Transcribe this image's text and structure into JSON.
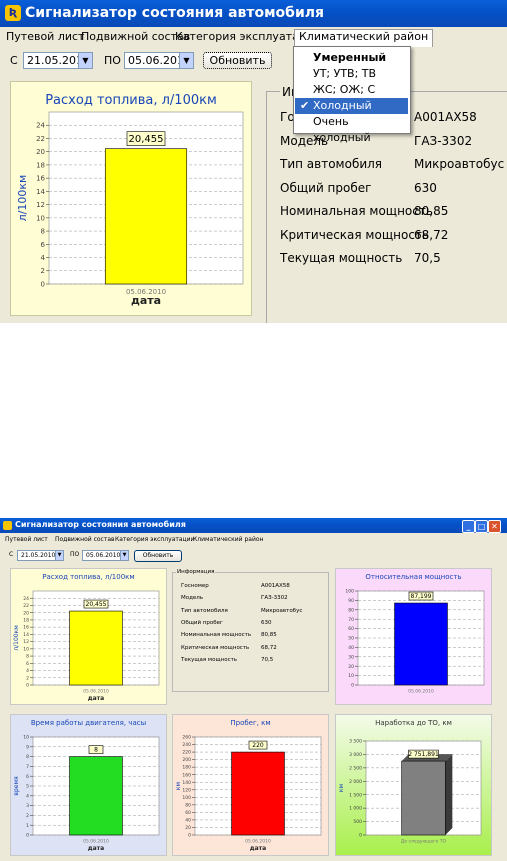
{
  "window_title": "Сигнализатор состояния автомобиля",
  "menu": [
    "Путевой лист",
    "Подвижной состав",
    "Категория эксплуатации",
    "Климатический район"
  ],
  "toolbar": {
    "from_label": "С",
    "from_date": "21.05.2010",
    "to_label": "ПО",
    "to_date": "05.06.2010",
    "refresh_label": "Обновить"
  },
  "climate_menu": {
    "items": [
      {
        "label": "Умеренный",
        "bold": true,
        "checked": false,
        "selected": false
      },
      {
        "label": "УТ; УТВ; ТВ",
        "bold": false,
        "checked": false,
        "selected": false
      },
      {
        "label": "ЖС; ОЖ; С",
        "bold": false,
        "checked": false,
        "selected": false
      },
      {
        "label": "Холодный",
        "bold": false,
        "checked": true,
        "selected": true
      },
      {
        "label": "Очень холодный",
        "bold": false,
        "checked": false,
        "selected": false
      }
    ]
  },
  "info": {
    "legend_top": "Инф",
    "legend": "Информация",
    "rows": [
      {
        "label": "Госномер",
        "label_top": "Гос",
        "value": "А001АХ58"
      },
      {
        "label": "Модель",
        "label_top": "Модель",
        "value": "ГАЗ-3302"
      },
      {
        "label": "Тип автомобиля",
        "label_top": "Тип автомобиля",
        "value": "Микроавтобус"
      },
      {
        "label": "Общий пробег",
        "label_top": "Общий пробег",
        "value": "630"
      },
      {
        "label": "Номинальная мощность",
        "label_top": "Номинальная мощность",
        "value": "80,85"
      },
      {
        "label": "Критическая мощность",
        "label_top": "Критическая мощность",
        "value": "68,72"
      },
      {
        "label": "Текущая мощность",
        "label_top": "Текущая мощность",
        "value": "70,5"
      }
    ]
  },
  "colors": {
    "fuel": "#ffff00",
    "power": "#0000ff",
    "engine": "#22dd22",
    "mileage": "#ff0000",
    "service": "#808080",
    "accent": "#0a5fd8"
  },
  "chart_data": [
    {
      "id": "fuel",
      "type": "bar",
      "title": "Расход топлива, л/100км",
      "xlabel": "дата",
      "ylabel": "л/100км",
      "categories": [
        "05.06.2010"
      ],
      "values": [
        20.455
      ],
      "value_label": "20,455",
      "ylim": [
        0,
        26
      ],
      "yticks": [
        0,
        2,
        4,
        6,
        8,
        10,
        12,
        14,
        16,
        18,
        20,
        22,
        24
      ],
      "grid": true
    },
    {
      "id": "power",
      "type": "bar",
      "title": "Относительная мощность",
      "xlabel": "",
      "ylabel": "",
      "categories": [
        "05.06.2010"
      ],
      "values": [
        87.199
      ],
      "value_label": "87,199",
      "ylim": [
        0,
        100
      ],
      "yticks": [
        0,
        10,
        20,
        30,
        40,
        50,
        60,
        70,
        80,
        90,
        100
      ],
      "grid": true
    },
    {
      "id": "engine",
      "type": "bar",
      "title": "Время работы двигателя, часы",
      "xlabel": "дата",
      "ylabel": "время",
      "categories": [
        "05.06.2010"
      ],
      "values": [
        8
      ],
      "value_label": "8",
      "ylim": [
        0,
        10
      ],
      "yticks": [
        0,
        1,
        2,
        3,
        4,
        5,
        6,
        7,
        8,
        9,
        10
      ],
      "grid": true
    },
    {
      "id": "mileage",
      "type": "bar",
      "title": "Пробег, км",
      "xlabel": "дата",
      "ylabel": "км",
      "categories": [
        "05.06.2010"
      ],
      "values": [
        220
      ],
      "value_label": "220",
      "ylim": [
        0,
        260
      ],
      "yticks": [
        0,
        20,
        40,
        60,
        80,
        100,
        120,
        140,
        160,
        180,
        200,
        220,
        240,
        260
      ],
      "grid": true
    },
    {
      "id": "service",
      "type": "bar",
      "title": "Наработка до ТО, км",
      "xlabel": "",
      "ylabel": "км",
      "categories": [
        "До следующего ТО"
      ],
      "values": [
        2751.891
      ],
      "value_label": "2 751,891",
      "ylim": [
        0,
        3500
      ],
      "yticks": [
        0,
        500,
        1000,
        1500,
        2000,
        2500,
        3000,
        3500
      ],
      "ytick_labels": [
        "0",
        "500",
        "1 000",
        "1 500",
        "2 000",
        "2 500",
        "3 000",
        "3 500"
      ],
      "grid": true,
      "three_d": true
    }
  ]
}
